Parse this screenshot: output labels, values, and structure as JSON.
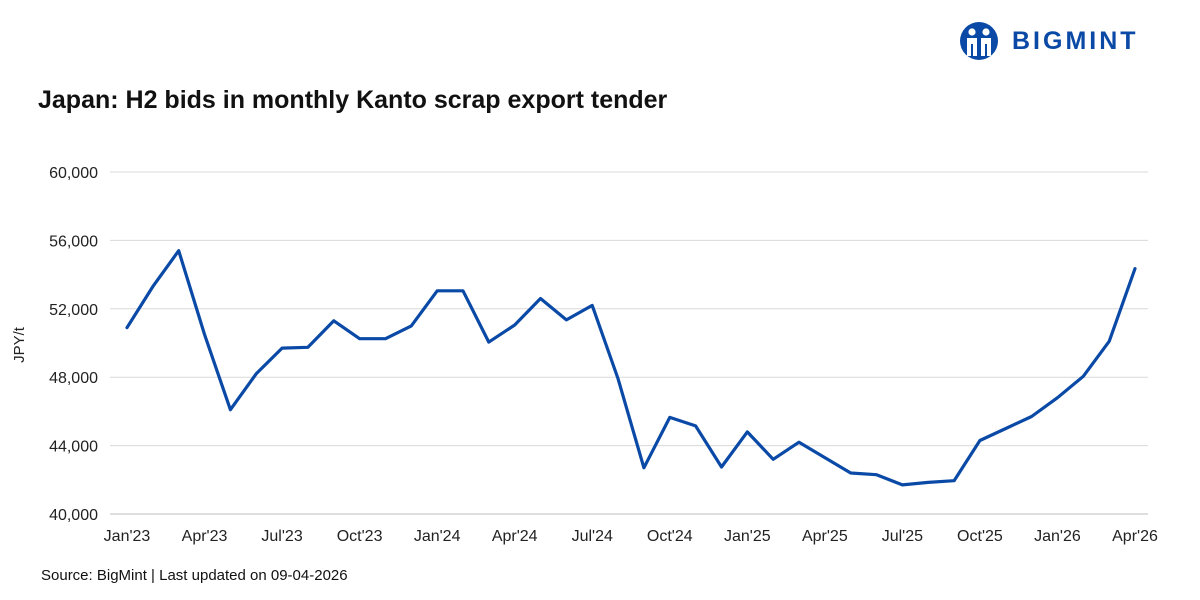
{
  "brand": {
    "name": "BIGMINT",
    "color": "#0a4aa6"
  },
  "footer": {
    "source": "Source: BigMint | Last updated on 09-04-2026"
  },
  "chart_data": {
    "type": "line",
    "title": "Japan: H2 bids in monthly Kanto scrap export tender",
    "xlabel": "",
    "ylabel": "JPY/t",
    "ylim": [
      40000,
      60000
    ],
    "yticks": [
      40000,
      44000,
      48000,
      52000,
      56000,
      60000
    ],
    "ytick_labels": [
      "40,000",
      "44,000",
      "48,000",
      "52,000",
      "56,000",
      "60,000"
    ],
    "xtick_labels": [
      "Jan'23",
      "Apr'23",
      "Jul'23",
      "Oct'23",
      "Jan'24",
      "Apr'24",
      "Jul'24",
      "Oct'24",
      "Jan'25",
      "Apr'25",
      "Jul'25",
      "Oct'25",
      "Jan'26",
      "Apr'26"
    ],
    "grid": true,
    "legend": "none",
    "line_color": "#0a4aa6",
    "series": [
      {
        "x": [
          "Jan'23",
          "Feb'23",
          "Mar'23",
          "Apr'23",
          "May'23",
          "Jun'23",
          "Jul'23",
          "Aug'23",
          "Sep'23",
          "Oct'23",
          "Nov'23",
          "Dec'23",
          "Jan'24",
          "Feb'24",
          "Mar'24",
          "Apr'24",
          "May'24",
          "Jun'24",
          "Jul'24",
          "Aug'24",
          "Sep'24",
          "Oct'24",
          "Nov'24",
          "Dec'24",
          "Jan'25",
          "Feb'25",
          "Mar'25",
          "Apr'25",
          "May'25",
          "Jun'25",
          "Jul'25",
          "Aug'25",
          "Sep'25",
          "Oct'25",
          "Nov'25",
          "Dec'25",
          "Jan'26",
          "Feb'26",
          "Mar'26",
          "Apr'26"
        ],
        "values": [
          50900,
          53300,
          55400,
          50500,
          46100,
          48200,
          49700,
          49750,
          51300,
          50250,
          50250,
          51000,
          53050,
          53050,
          50050,
          51050,
          52600,
          51350,
          52200,
          47900,
          42700,
          45650,
          45150,
          42750,
          44800,
          43200,
          44200,
          43300,
          42400,
          42300,
          41700,
          41850,
          41950,
          44300,
          45000,
          45700,
          46800,
          48050,
          50100,
          54350
        ]
      }
    ]
  }
}
